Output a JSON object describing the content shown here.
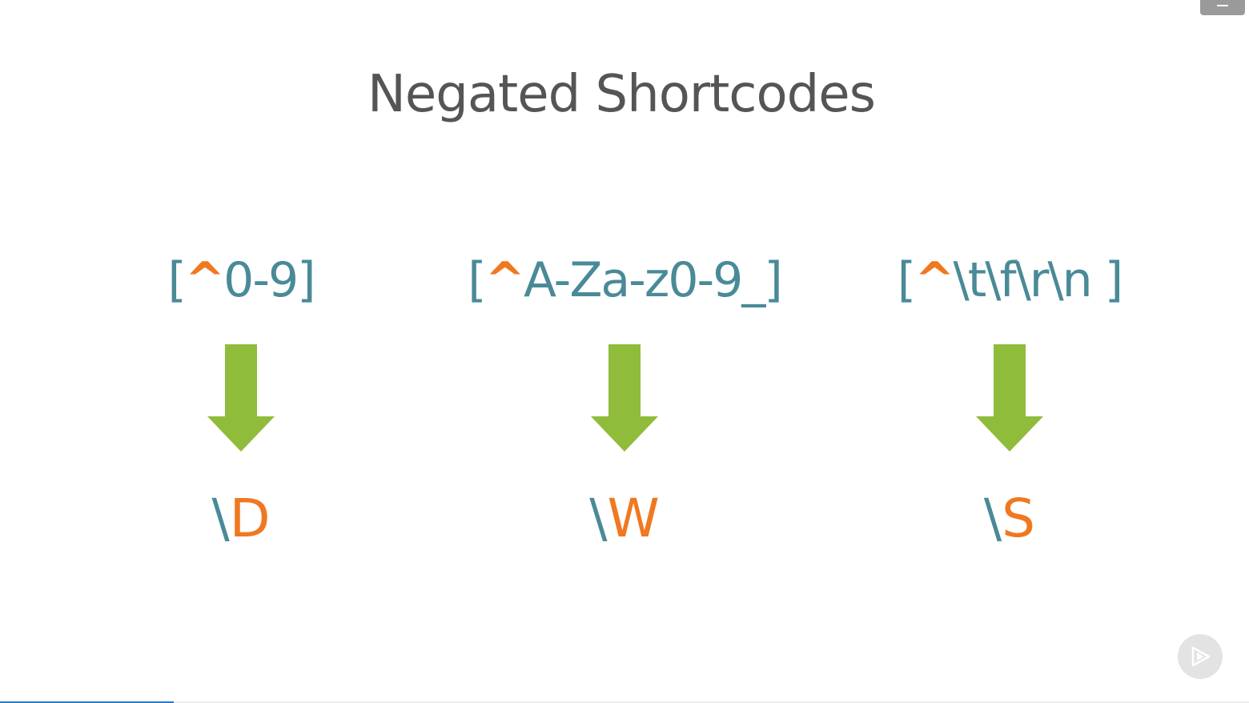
{
  "slide": {
    "title": "Negated Shortcodes"
  },
  "columns": [
    {
      "open": "[",
      "caret": "^",
      "range": "0-9]",
      "shortcode_slash": "\\",
      "shortcode_letter": "D"
    },
    {
      "open": "[",
      "caret": "^",
      "range": "A-Za-z0-9_]",
      "shortcode_slash": "\\",
      "shortcode_letter": "W"
    },
    {
      "open": "[",
      "caret": "^",
      "range": "\\t\\f\\r\\n ]",
      "shortcode_slash": "\\",
      "shortcode_letter": "S"
    }
  ],
  "player": {
    "progress": 0.139,
    "menu_icon": "hamburger-icon",
    "badge_icon": "play-logo-icon"
  },
  "colors": {
    "title": "#555555",
    "teal": "#4a8a98",
    "orange": "#f07820",
    "arrow_green": "#8fbc3a",
    "progress": "#2a7bbf"
  }
}
